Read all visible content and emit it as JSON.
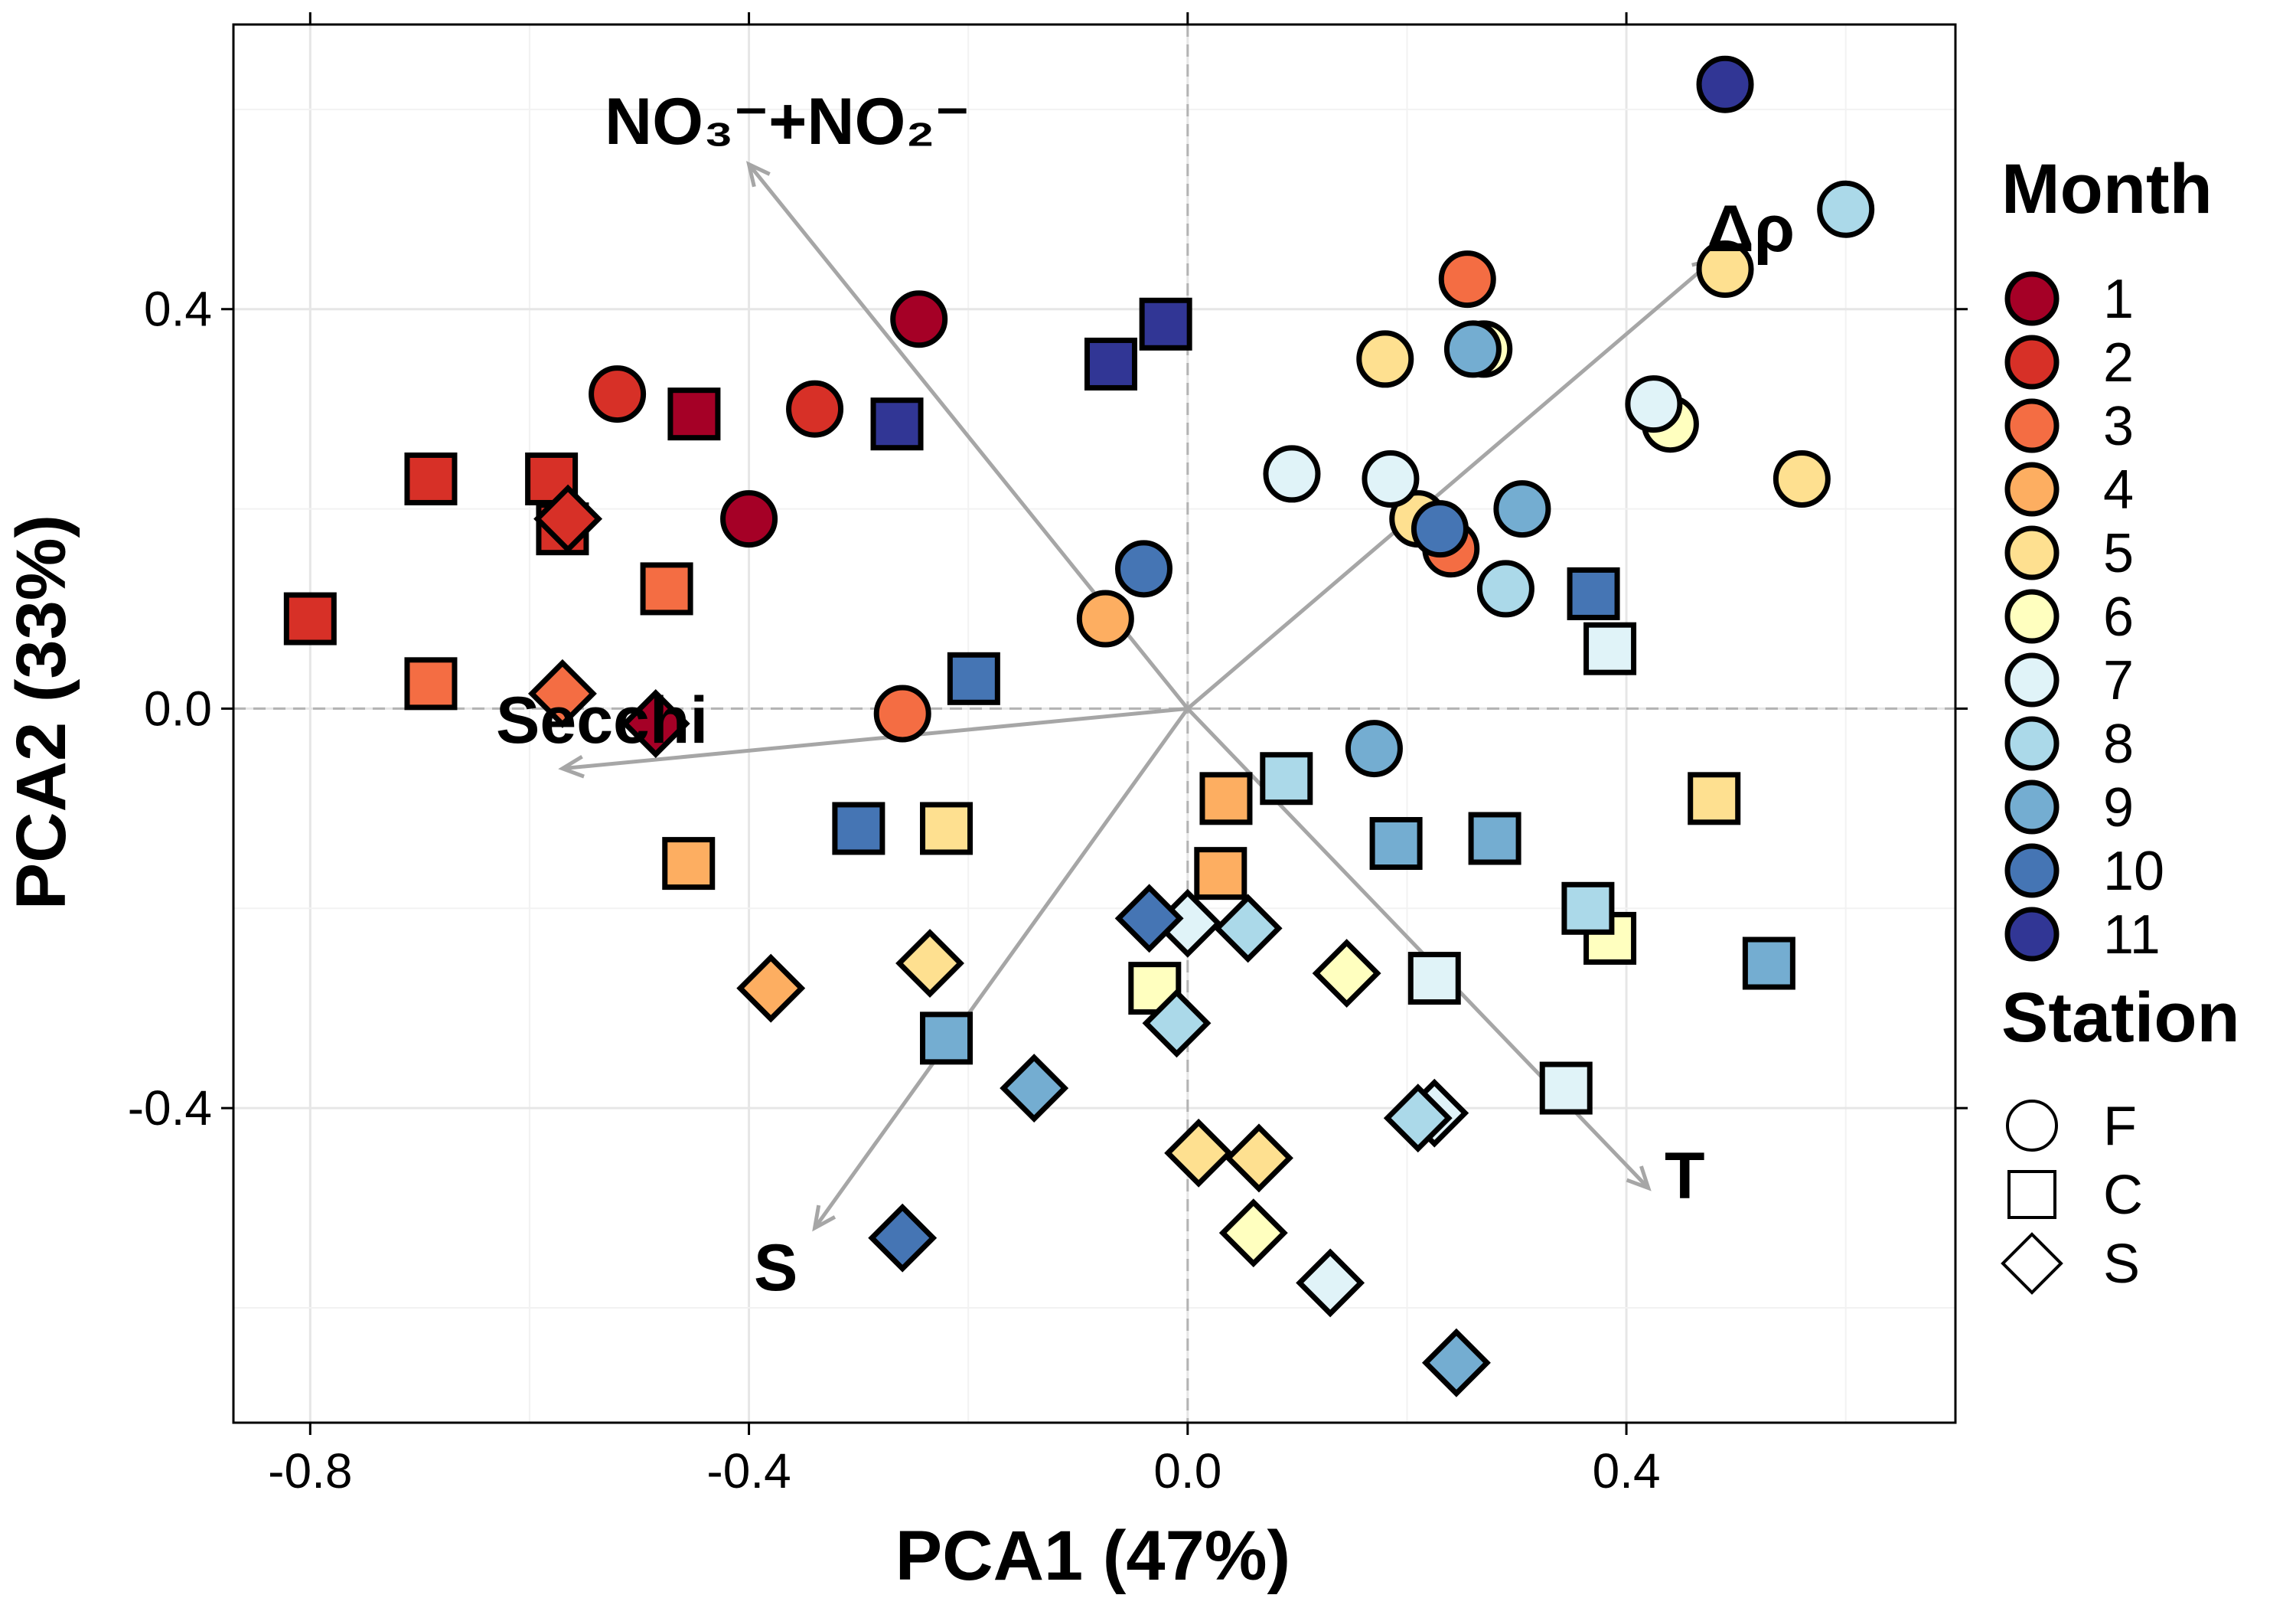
{
  "chart_data": {
    "type": "scatter",
    "xlabel": "PCA1 (47%)",
    "ylabel": "PCA2 (33%)",
    "xlim": [
      -0.87,
      0.7
    ],
    "ylim": [
      -0.715,
      0.685
    ],
    "xticks": [
      -0.8,
      -0.4,
      0.0,
      0.4
    ],
    "yticks": [
      -0.4,
      0.0,
      0.4
    ],
    "xtick_labels": [
      "-0.8",
      "-0.4",
      "0.0",
      "0.4"
    ],
    "ytick_labels": [
      "-0.4",
      "0.0",
      "0.4"
    ],
    "grid": true,
    "reference_lines": {
      "x": 0,
      "y": 0
    },
    "legend_position": "right",
    "month_legend": {
      "title": "Month",
      "items": [
        {
          "label": "1",
          "color": "#A50026"
        },
        {
          "label": "2",
          "color": "#D73027"
        },
        {
          "label": "3",
          "color": "#F46D43"
        },
        {
          "label": "4",
          "color": "#FDAE61"
        },
        {
          "label": "5",
          "color": "#FEE090"
        },
        {
          "label": "6",
          "color": "#FFFFBF"
        },
        {
          "label": "7",
          "color": "#E0F3F8"
        },
        {
          "label": "8",
          "color": "#ABD9E9"
        },
        {
          "label": "9",
          "color": "#74ADD1"
        },
        {
          "label": "10",
          "color": "#4575B4"
        },
        {
          "label": "11",
          "color": "#313695"
        }
      ]
    },
    "station_legend": {
      "title": "Station",
      "items": [
        {
          "label": "F",
          "shape": "circle"
        },
        {
          "label": "C",
          "shape": "square"
        },
        {
          "label": "S",
          "shape": "diamond"
        }
      ]
    },
    "loadings": [
      {
        "label": "NO₃⁻+NO₂⁻",
        "x": -0.4,
        "y": 0.545
      },
      {
        "label": "Δρ",
        "x": 0.48,
        "y": 0.45
      },
      {
        "label": "Secchi",
        "x": -0.57,
        "y": -0.06
      },
      {
        "label": "T",
        "x": 0.42,
        "y": -0.48
      },
      {
        "label": "S",
        "x": -0.34,
        "y": -0.52
      }
    ],
    "points": [
      {
        "x": -0.245,
        "y": 0.39,
        "month": 1,
        "station": "F"
      },
      {
        "x": -0.4,
        "y": 0.19,
        "month": 1,
        "station": "F"
      },
      {
        "x": -0.52,
        "y": 0.315,
        "month": 2,
        "station": "F"
      },
      {
        "x": -0.34,
        "y": 0.3,
        "month": 2,
        "station": "F"
      },
      {
        "x": -0.26,
        "y": -0.005,
        "month": 3,
        "station": "F"
      },
      {
        "x": 0.255,
        "y": 0.43,
        "month": 3,
        "station": "F"
      },
      {
        "x": 0.24,
        "y": 0.16,
        "month": 3,
        "station": "F"
      },
      {
        "x": -0.075,
        "y": 0.09,
        "month": 4,
        "station": "F"
      },
      {
        "x": 0.18,
        "y": 0.35,
        "month": 5,
        "station": "F"
      },
      {
        "x": 0.49,
        "y": 0.44,
        "month": 5,
        "station": "F"
      },
      {
        "x": 0.56,
        "y": 0.23,
        "month": 5,
        "station": "F"
      },
      {
        "x": 0.21,
        "y": 0.19,
        "month": 5,
        "station": "F"
      },
      {
        "x": 0.27,
        "y": 0.36,
        "month": 6,
        "station": "F"
      },
      {
        "x": 0.44,
        "y": 0.285,
        "month": 6,
        "station": "F"
      },
      {
        "x": 0.095,
        "y": 0.235,
        "month": 7,
        "station": "F"
      },
      {
        "x": 0.185,
        "y": 0.23,
        "month": 7,
        "station": "F"
      },
      {
        "x": 0.425,
        "y": 0.305,
        "month": 7,
        "station": "F"
      },
      {
        "x": 0.6,
        "y": 0.5,
        "month": 8,
        "station": "F"
      },
      {
        "x": 0.29,
        "y": 0.12,
        "month": 8,
        "station": "F"
      },
      {
        "x": 0.26,
        "y": 0.36,
        "month": 9,
        "station": "F"
      },
      {
        "x": 0.305,
        "y": 0.2,
        "month": 9,
        "station": "F"
      },
      {
        "x": 0.17,
        "y": -0.04,
        "month": 9,
        "station": "F"
      },
      {
        "x": -0.04,
        "y": 0.14,
        "month": 10,
        "station": "F"
      },
      {
        "x": 0.23,
        "y": 0.18,
        "month": 10,
        "station": "F"
      },
      {
        "x": 0.49,
        "y": 0.625,
        "month": 11,
        "station": "F"
      },
      {
        "x": -0.45,
        "y": 0.295,
        "month": 1,
        "station": "C"
      },
      {
        "x": -0.8,
        "y": 0.09,
        "month": 2,
        "station": "C"
      },
      {
        "x": -0.69,
        "y": 0.23,
        "month": 2,
        "station": "C"
      },
      {
        "x": -0.58,
        "y": 0.23,
        "month": 2,
        "station": "C"
      },
      {
        "x": -0.57,
        "y": 0.18,
        "month": 2,
        "station": "C"
      },
      {
        "x": -0.69,
        "y": 0.025,
        "month": 3,
        "station": "C"
      },
      {
        "x": -0.475,
        "y": 0.12,
        "month": 3,
        "station": "C"
      },
      {
        "x": -0.455,
        "y": -0.155,
        "month": 4,
        "station": "C"
      },
      {
        "x": 0.035,
        "y": -0.09,
        "month": 4,
        "station": "C"
      },
      {
        "x": 0.03,
        "y": -0.165,
        "month": 4,
        "station": "C"
      },
      {
        "x": -0.22,
        "y": -0.12,
        "month": 5,
        "station": "C"
      },
      {
        "x": 0.48,
        "y": -0.09,
        "month": 5,
        "station": "C"
      },
      {
        "x": -0.03,
        "y": -0.28,
        "month": 6,
        "station": "C"
      },
      {
        "x": 0.385,
        "y": -0.23,
        "month": 6,
        "station": "C"
      },
      {
        "x": 0.385,
        "y": 0.06,
        "month": 7,
        "station": "C"
      },
      {
        "x": 0.225,
        "y": -0.27,
        "month": 7,
        "station": "C"
      },
      {
        "x": 0.345,
        "y": -0.38,
        "month": 7,
        "station": "C"
      },
      {
        "x": 0.09,
        "y": -0.07,
        "month": 8,
        "station": "C"
      },
      {
        "x": 0.365,
        "y": -0.2,
        "month": 8,
        "station": "C"
      },
      {
        "x": -0.22,
        "y": -0.33,
        "month": 9,
        "station": "C"
      },
      {
        "x": 0.19,
        "y": -0.135,
        "month": 9,
        "station": "C"
      },
      {
        "x": 0.28,
        "y": -0.13,
        "month": 9,
        "station": "C"
      },
      {
        "x": 0.53,
        "y": -0.255,
        "month": 9,
        "station": "C"
      },
      {
        "x": -0.195,
        "y": 0.03,
        "month": 10,
        "station": "C"
      },
      {
        "x": -0.3,
        "y": -0.12,
        "month": 10,
        "station": "C"
      },
      {
        "x": 0.37,
        "y": 0.115,
        "month": 10,
        "station": "C"
      },
      {
        "x": -0.265,
        "y": 0.285,
        "month": 11,
        "station": "C"
      },
      {
        "x": -0.07,
        "y": 0.345,
        "month": 11,
        "station": "C"
      },
      {
        "x": -0.02,
        "y": 0.385,
        "month": 11,
        "station": "C"
      },
      {
        "x": -0.485,
        "y": -0.015,
        "month": 1,
        "station": "S"
      },
      {
        "x": -0.565,
        "y": 0.19,
        "month": 2,
        "station": "S"
      },
      {
        "x": -0.57,
        "y": 0.015,
        "month": 3,
        "station": "S"
      },
      {
        "x": -0.38,
        "y": -0.28,
        "month": 4,
        "station": "S"
      },
      {
        "x": -0.235,
        "y": -0.255,
        "month": 5,
        "station": "S"
      },
      {
        "x": 0.01,
        "y": -0.445,
        "month": 5,
        "station": "S"
      },
      {
        "x": 0.065,
        "y": -0.45,
        "month": 5,
        "station": "S"
      },
      {
        "x": 0.145,
        "y": -0.265,
        "month": 6,
        "station": "S"
      },
      {
        "x": 0.06,
        "y": -0.525,
        "month": 6,
        "station": "S"
      },
      {
        "x": 0.0,
        "y": -0.215,
        "month": 7,
        "station": "S"
      },
      {
        "x": 0.13,
        "y": -0.575,
        "month": 7,
        "station": "S"
      },
      {
        "x": 0.225,
        "y": -0.405,
        "month": 7,
        "station": "S"
      },
      {
        "x": 0.055,
        "y": -0.22,
        "month": 8,
        "station": "S"
      },
      {
        "x": -0.01,
        "y": -0.315,
        "month": 8,
        "station": "S"
      },
      {
        "x": 0.21,
        "y": -0.41,
        "month": 8,
        "station": "S"
      },
      {
        "x": -0.14,
        "y": -0.38,
        "month": 9,
        "station": "S"
      },
      {
        "x": -0.035,
        "y": -0.21,
        "month": 10,
        "station": "S"
      },
      {
        "x": 0.245,
        "y": -0.655,
        "month": 9,
        "station": "S"
      },
      {
        "x": -0.26,
        "y": -0.53,
        "month": 10,
        "station": "S"
      }
    ]
  }
}
